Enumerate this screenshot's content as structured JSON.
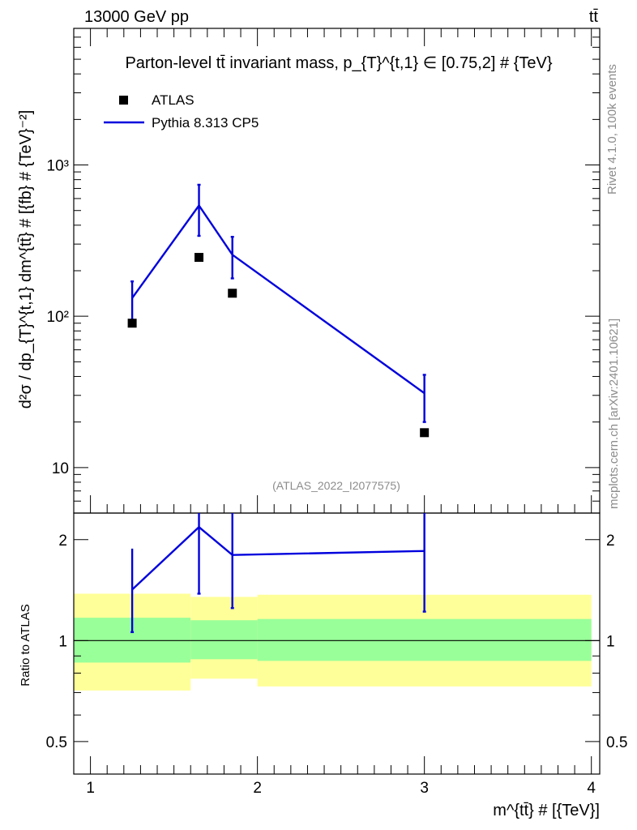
{
  "header": {
    "energy": "13000 GeV pp",
    "process": "tt̄"
  },
  "side_labels": {
    "rivet": "Rivet 4.1.0,  100k events",
    "source": "mcplots.cern.ch [arXiv:2401.10621]"
  },
  "chart_data": [
    {
      "type": "line",
      "title": "Parton-level tt̄ invariant mass, p_{T}^{t,1} ∈ [0.75,2] # {TeV}",
      "ylabel": "d²σ / dp_{T}^{t,1} dm^{tt̄} # [{fb} # {TeV}⁻²]",
      "yscale": "log",
      "ylim": [
        5,
        8000
      ],
      "xlim": [
        0.9,
        4.05
      ],
      "y_ticks": [
        {
          "v": 10,
          "label": "10"
        },
        {
          "v": 100,
          "label": "10²"
        },
        {
          "v": 1000,
          "label": "10³"
        }
      ],
      "watermark": "(ATLAS_2022_I2077575)",
      "legend": {
        "placement": "top-left",
        "data_label": "ATLAS",
        "mc_label": "Pythia 8.313 CP5"
      },
      "series": [
        {
          "name": "ATLAS",
          "style": "markers",
          "x": [
            1.25,
            1.65,
            1.85,
            3.0
          ],
          "values": [
            90,
            245,
            142,
            17
          ]
        },
        {
          "name": "Pythia 8.313 CP5",
          "style": "line",
          "x": [
            1.25,
            1.65,
            1.85,
            3.0
          ],
          "values": [
            132,
            540,
            255,
            31
          ],
          "err_low": [
            95,
            340,
            178,
            20
          ],
          "err_high": [
            170,
            740,
            335,
            41
          ]
        }
      ]
    },
    {
      "type": "line",
      "ylabel": "Ratio to ATLAS",
      "xlabel": "m^{tt̄} # [{TeV}]",
      "yscale": "log",
      "ylim": [
        0.4,
        2.4
      ],
      "xlim": [
        0.9,
        4.05
      ],
      "y_ticks": [
        {
          "v": 0.5,
          "label": "0.5"
        },
        {
          "v": 1,
          "label": "1"
        },
        {
          "v": 2,
          "label": "2"
        }
      ],
      "x_ticks": [
        {
          "v": 1,
          "label": "1"
        },
        {
          "v": 2,
          "label": "2"
        },
        {
          "v": 3,
          "label": "3"
        },
        {
          "v": 4,
          "label": "4"
        }
      ],
      "bands": [
        {
          "x0": 0.9,
          "x1": 1.6,
          "inner": [
            0.86,
            1.17
          ],
          "outer": [
            0.71,
            1.38
          ]
        },
        {
          "x0": 1.6,
          "x1": 2.0,
          "inner": [
            0.88,
            1.15
          ],
          "outer": [
            0.77,
            1.35
          ]
        },
        {
          "x0": 2.0,
          "x1": 4.0,
          "inner": [
            0.87,
            1.16
          ],
          "outer": [
            0.73,
            1.37
          ]
        }
      ],
      "series": [
        {
          "name": "Pythia 8.313 CP5 / ATLAS",
          "x": [
            1.25,
            1.65,
            1.85,
            3.0
          ],
          "values": [
            1.42,
            2.18,
            1.8,
            1.85
          ],
          "err_low": [
            1.06,
            1.38,
            1.25,
            1.22
          ],
          "err_high": [
            1.88,
            2.6,
            2.6,
            2.6
          ]
        }
      ]
    }
  ]
}
